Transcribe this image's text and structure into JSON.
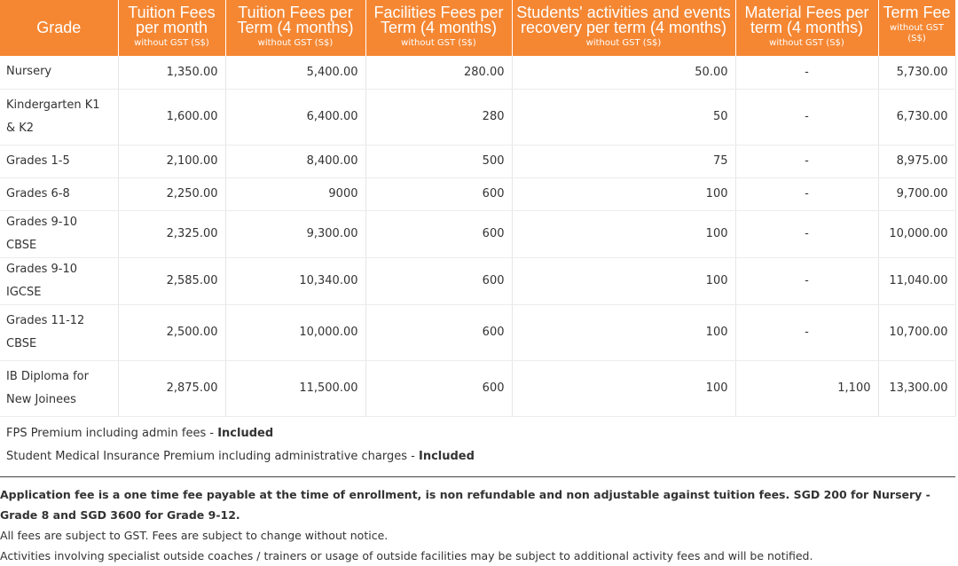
{
  "table": {
    "headers": [
      {
        "main": "Grade",
        "sub": ""
      },
      {
        "main": "Tuition Fees per month",
        "sub": "without GST (S$)"
      },
      {
        "main": "Tuition Fees per Term (4 months)",
        "sub": "without GST (S$)"
      },
      {
        "main": "Facilities Fees per Term (4 months)",
        "sub": "without GST (S$)"
      },
      {
        "main": "Students' activities and events recovery per term (4 months)",
        "sub": "without GST (S$)"
      },
      {
        "main": "Material Fees per term (4 months)",
        "sub": "without GST (S$)"
      },
      {
        "main": "Term Fee",
        "sub": "without GST (S$)"
      }
    ],
    "rows": [
      {
        "grade": "Nursery",
        "monthly": "1,350.00",
        "term": "5,400.00",
        "facilities": "280.00",
        "activities": "50.00",
        "material": "-",
        "term_fee": "5,730.00"
      },
      {
        "grade": "Kindergarten K1 & K2",
        "monthly": "1,600.00",
        "term": "6,400.00",
        "facilities": "280",
        "activities": "50",
        "material": "-",
        "term_fee": "6,730.00"
      },
      {
        "grade": "Grades 1-5",
        "monthly": "2,100.00",
        "term": "8,400.00",
        "facilities": "500",
        "activities": "75",
        "material": "-",
        "term_fee": "8,975.00"
      },
      {
        "grade": "Grades 6-8",
        "monthly": "2,250.00",
        "term": "9000",
        "facilities": "600",
        "activities": "100",
        "material": "-",
        "term_fee": "9,700.00"
      },
      {
        "grade": "Grades 9-10 CBSE",
        "monthly": "2,325.00",
        "term": "9,300.00",
        "facilities": "600",
        "activities": "100",
        "material": "-",
        "term_fee": "10,000.00"
      },
      {
        "grade": "Grades 9-10 IGCSE",
        "monthly": "2,585.00",
        "term": "10,340.00",
        "facilities": "600",
        "activities": "100",
        "material": "-",
        "term_fee": "11,040.00"
      },
      {
        "grade": "Grades 11-12 CBSE",
        "monthly": "2,500.00",
        "term": "10,000.00",
        "facilities": "600",
        "activities": "100",
        "material": "-",
        "term_fee": "10,700.00"
      },
      {
        "grade": "IB Diploma for New Joinees",
        "monthly": "2,875.00",
        "term": "11,500.00",
        "facilities": "600",
        "activities": "100",
        "material": "1,100",
        "term_fee": "13,300.00"
      }
    ]
  },
  "notes": {
    "fps_text": "FPS Premium including admin fees - ",
    "fps_status": "Included",
    "medical_text": "Student Medical Insurance Premium including administrative charges - ",
    "medical_status": "Included"
  },
  "footer": {
    "application_fee": "Application fee is a one time fee payable at the time of enrollment, is non refundable and non adjustable against tuition fees. SGD 200 for Nursery - Grade 8 and SGD 3600 for Grade 9-12.",
    "gst_note": "All fees are subject to GST. Fees are subject to change without notice.",
    "activities_note": "Activities involving specialist outside coaches / trainers or usage of outside facilities may be subject to additional activity fees and will be notified."
  },
  "colors": {
    "header_bg": "#f58733",
    "header_text": "#ffffff"
  }
}
